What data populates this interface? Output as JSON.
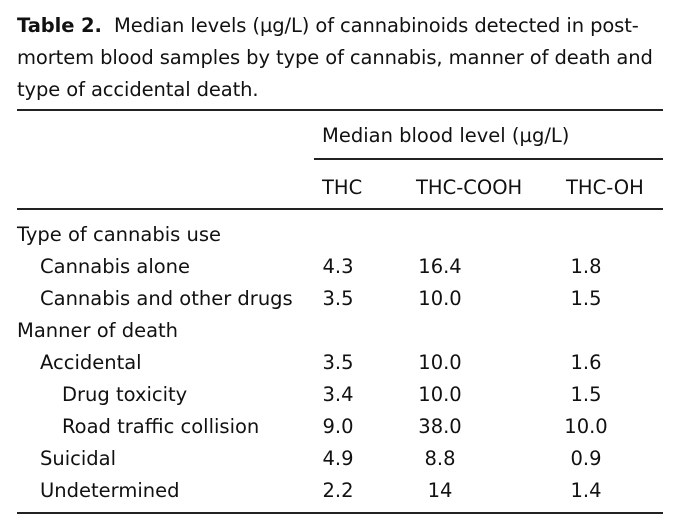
{
  "caption": {
    "label": "Table 2.",
    "text": "Median levels (µg/L) of cannabinoids detected in post-mortem blood samples by type of cannabis, manner of death and type of accidental death."
  },
  "table": {
    "group_header": "Median blood level (µg/L)",
    "columns": [
      "THC",
      "THC-COOH",
      "THC-OH"
    ],
    "sections": [
      {
        "title": "Type of cannabis use",
        "rows": [
          {
            "label": "Cannabis alone",
            "indent": 1,
            "values": [
              "4.3",
              "16.4",
              "1.8"
            ]
          },
          {
            "label": "Cannabis and other drugs",
            "indent": 1,
            "values": [
              "3.5",
              "10.0",
              "1.5"
            ]
          }
        ]
      },
      {
        "title": "Manner of death",
        "rows": [
          {
            "label": "Accidental",
            "indent": 1,
            "values": [
              "3.5",
              "10.0",
              "1.6"
            ]
          },
          {
            "label": "Drug toxicity",
            "indent": 2,
            "values": [
              "3.4",
              "10.0",
              "1.5"
            ]
          },
          {
            "label": "Road traffic collision",
            "indent": 2,
            "values": [
              "9.0",
              "38.0",
              "10.0"
            ]
          },
          {
            "label": "Suicidal",
            "indent": 1,
            "values": [
              "4.9",
              "8.8",
              "0.9"
            ]
          },
          {
            "label": "Undetermined",
            "indent": 1,
            "values": [
              "2.2",
              "14",
              "1.4"
            ]
          }
        ]
      }
    ]
  }
}
